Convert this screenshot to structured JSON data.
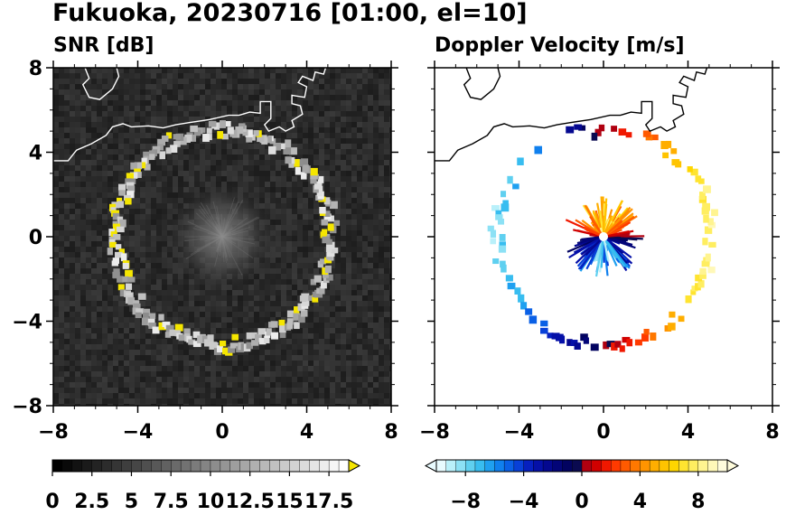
{
  "figure": {
    "title": "Fukuoka, 20230716 [01:00, el=10]"
  },
  "chart_data": [
    {
      "type": "heatmap",
      "title": "SNR [dB]",
      "xlabel": "",
      "ylabel": "",
      "xlim": [
        -8,
        8
      ],
      "ylim": [
        -8,
        8
      ],
      "xticks": [
        "−8",
        "−4",
        "0",
        "4",
        "8"
      ],
      "yticks": [
        "8",
        "4",
        "0",
        "−4",
        "−8"
      ],
      "background": "#2a2a2a",
      "echo_ring": {
        "description_values": "strong SNR returns forming a ring of radius ~5 around origin",
        "center": [
          0,
          0
        ],
        "radius": 5.1,
        "peak_snr_db": 17.5
      },
      "ground_clutter": {
        "center": [
          0,
          0
        ],
        "radius": 1.6
      },
      "colorbar": {
        "ticks": [
          "0",
          "2.5",
          "5",
          "7.5",
          "10",
          "12.5",
          "15",
          "17.5"
        ],
        "min": 0,
        "max": 18.75,
        "segments": 30,
        "extend": "max",
        "low_color": "#000000",
        "high_color": "#ffffff",
        "top_color": "#f5e600"
      }
    },
    {
      "type": "heatmap",
      "title": "Doppler Velocity [m/s]",
      "xlabel": "",
      "ylabel": "",
      "xlim": [
        -8,
        8
      ],
      "ylim": [
        -8,
        8
      ],
      "xticks": [
        "−8",
        "−4",
        "0",
        "4",
        "8"
      ],
      "yticks": [],
      "background": "#ffffff",
      "colorbar": {
        "ticks": [
          "−8",
          "−4",
          "0",
          "4",
          "8"
        ],
        "tick_values": [
          -8,
          -4,
          0,
          4,
          8
        ],
        "min": -10,
        "max": 10,
        "segments": 30,
        "extend": "both",
        "colors": [
          "#e8fbff",
          "#b9f0fa",
          "#8ce1f5",
          "#5fd0f0",
          "#38bdf0",
          "#1fa0f0",
          "#1080ee",
          "#0a60e6",
          "#0840d8",
          "#0620c0",
          "#0510a8",
          "#040890",
          "#030578",
          "#020360",
          "#0a0a50",
          "#b00010",
          "#d00000",
          "#f01800",
          "#ff3a00",
          "#ff5a00",
          "#ff7800",
          "#ff9400",
          "#ffae00",
          "#ffc400",
          "#ffd600",
          "#ffe430",
          "#ffee60",
          "#fff490",
          "#fff8b8",
          "#fffcdc"
        ]
      }
    }
  ]
}
